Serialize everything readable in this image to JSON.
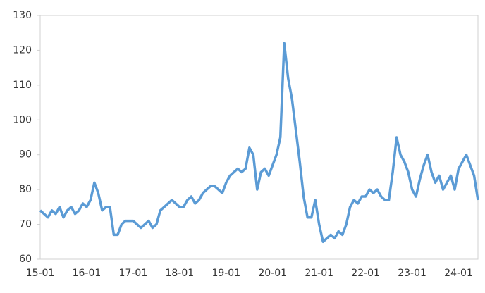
{
  "chart_data": {
    "type": "line",
    "categories": [
      "15-01",
      null,
      null,
      null,
      null,
      null,
      null,
      null,
      null,
      null,
      null,
      null,
      "16-01",
      null,
      null,
      null,
      null,
      null,
      null,
      null,
      null,
      null,
      null,
      null,
      "17-01",
      null,
      null,
      null,
      null,
      null,
      null,
      null,
      null,
      null,
      null,
      null,
      "18-01",
      null,
      null,
      null,
      null,
      null,
      null,
      null,
      null,
      null,
      null,
      null,
      "19-01",
      null,
      null,
      null,
      null,
      null,
      null,
      null,
      null,
      null,
      null,
      null,
      "20-01",
      null,
      null,
      null,
      null,
      null,
      null,
      null,
      null,
      null,
      null,
      null,
      "21-01",
      null,
      null,
      null,
      null,
      null,
      null,
      null,
      null,
      null,
      null,
      null,
      "22-01",
      null,
      null,
      null,
      null,
      null,
      null,
      null,
      null,
      null,
      null,
      null,
      "23-01",
      null,
      null,
      null,
      null,
      null,
      null,
      null,
      null,
      null,
      null,
      null,
      "24-01",
      null,
      null,
      null,
      null,
      null
    ],
    "values": [
      74,
      73,
      72,
      74,
      73,
      75,
      72,
      74,
      75,
      73,
      74,
      76,
      75,
      77,
      82,
      79,
      74,
      75,
      75,
      67,
      67,
      70,
      71,
      71,
      71,
      70,
      69,
      70,
      71,
      69,
      70,
      74,
      75,
      76,
      77,
      76,
      75,
      75,
      77,
      78,
      76,
      77,
      79,
      80,
      81,
      81,
      80,
      79,
      82,
      84,
      85,
      86,
      85,
      86,
      92,
      90,
      80,
      85,
      86,
      84,
      87,
      90,
      95,
      122,
      112,
      106,
      97,
      88,
      78,
      72,
      72,
      77,
      70,
      65,
      66,
      67,
      66,
      68,
      67,
      70,
      75,
      77,
      76,
      78,
      78,
      80,
      79,
      80,
      78,
      77,
      77,
      85,
      95,
      90,
      88,
      85,
      80,
      78,
      83,
      87,
      90,
      85,
      82,
      84,
      80,
      82,
      84,
      80,
      86,
      88,
      90,
      87,
      84,
      77
    ],
    "color": "#5b9bd5",
    "ylim": [
      60,
      130
    ],
    "yticks": [
      60,
      70,
      80,
      90,
      100,
      110,
      120,
      130
    ]
  }
}
